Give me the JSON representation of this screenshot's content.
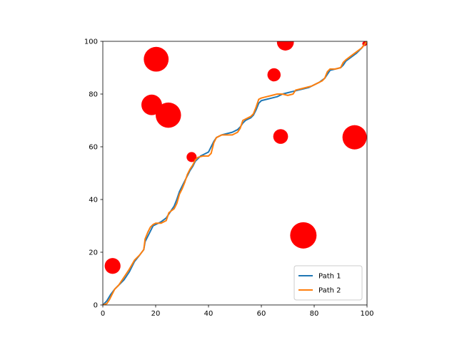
{
  "chart_data": {
    "type": "line",
    "xlim": [
      0,
      100
    ],
    "ylim": [
      0,
      100
    ],
    "xticks": [
      0,
      20,
      40,
      60,
      80,
      100
    ],
    "yticks": [
      0,
      20,
      40,
      60,
      80,
      100
    ],
    "grid": false,
    "legend_position": "lower-right",
    "obstacles": {
      "color": "#ff0000",
      "circles": [
        {
          "x": 3.7,
          "y": 14.8,
          "r": 3.0
        },
        {
          "x": 20.2,
          "y": 93.2,
          "r": 4.7
        },
        {
          "x": 18.5,
          "y": 75.9,
          "r": 3.9
        },
        {
          "x": 24.8,
          "y": 72.0,
          "r": 4.8
        },
        {
          "x": 33.6,
          "y": 56.1,
          "r": 1.9
        },
        {
          "x": 64.8,
          "y": 87.3,
          "r": 2.5
        },
        {
          "x": 69.1,
          "y": 99.7,
          "r": 3.2
        },
        {
          "x": 67.3,
          "y": 63.9,
          "r": 2.8
        },
        {
          "x": 75.9,
          "y": 26.4,
          "r": 5.0
        },
        {
          "x": 95.3,
          "y": 63.6,
          "r": 4.6
        },
        {
          "x": 99.1,
          "y": 99.1,
          "r": 0.9
        }
      ]
    },
    "series": [
      {
        "name": "Path 1",
        "color": "#1f77b4",
        "points": [
          [
            0,
            0
          ],
          [
            1.5,
            1.5
          ],
          [
            3,
            4
          ],
          [
            4.5,
            6
          ],
          [
            6,
            7.5
          ],
          [
            8,
            9.5
          ],
          [
            10,
            12.5
          ],
          [
            12,
            16.5
          ],
          [
            14,
            19
          ],
          [
            15.5,
            21
          ],
          [
            16,
            24
          ],
          [
            17,
            26
          ],
          [
            18,
            28
          ],
          [
            19,
            30
          ],
          [
            20,
            30.5
          ],
          [
            22,
            31.5
          ],
          [
            24,
            33
          ],
          [
            25,
            34.5
          ],
          [
            26,
            36
          ],
          [
            27,
            37.5
          ],
          [
            28,
            40
          ],
          [
            29,
            43
          ],
          [
            30,
            45
          ],
          [
            31,
            47
          ],
          [
            32,
            49
          ],
          [
            33,
            51
          ],
          [
            34,
            52.5
          ],
          [
            35,
            54.5
          ],
          [
            36,
            55.5
          ],
          [
            37,
            56.5
          ],
          [
            38,
            57
          ],
          [
            40,
            58
          ],
          [
            41,
            60
          ],
          [
            42,
            62
          ],
          [
            43,
            63.5
          ],
          [
            45,
            64.5
          ],
          [
            47,
            65
          ],
          [
            49,
            65.5
          ],
          [
            51,
            66.5
          ],
          [
            52,
            67.5
          ],
          [
            53,
            69
          ],
          [
            54,
            70
          ],
          [
            55,
            70.5
          ],
          [
            56,
            71
          ],
          [
            57,
            72
          ],
          [
            58,
            74
          ],
          [
            59,
            76.5
          ],
          [
            60,
            77.5
          ],
          [
            62,
            78
          ],
          [
            64,
            78.5
          ],
          [
            66,
            79
          ],
          [
            68,
            80
          ],
          [
            70,
            80.5
          ],
          [
            72,
            81
          ],
          [
            74,
            81.5
          ],
          [
            76,
            82
          ],
          [
            78,
            82.5
          ],
          [
            80,
            83.5
          ],
          [
            82,
            84.5
          ],
          [
            84,
            86
          ],
          [
            85,
            87.5
          ],
          [
            86,
            89
          ],
          [
            88,
            89.5
          ],
          [
            90,
            90
          ],
          [
            91,
            91
          ],
          [
            92,
            92.5
          ],
          [
            94,
            94
          ],
          [
            96,
            95.5
          ],
          [
            98,
            97.5
          ],
          [
            100,
            100
          ]
        ]
      },
      {
        "name": "Path 2",
        "color": "#ff7f0e",
        "points": [
          [
            0,
            0
          ],
          [
            1.5,
            0.5
          ],
          [
            2.5,
            2
          ],
          [
            3.5,
            4
          ],
          [
            4.5,
            6
          ],
          [
            6,
            7.5
          ],
          [
            8,
            10.5
          ],
          [
            10,
            13.5
          ],
          [
            12,
            17
          ],
          [
            14,
            19
          ],
          [
            15.5,
            21
          ],
          [
            16,
            25
          ],
          [
            17,
            27.5
          ],
          [
            18,
            29.5
          ],
          [
            19,
            30.5
          ],
          [
            20,
            31
          ],
          [
            22,
            31
          ],
          [
            24,
            32
          ],
          [
            25,
            35
          ],
          [
            27,
            36.5
          ],
          [
            28,
            38.5
          ],
          [
            29,
            42
          ],
          [
            30,
            44
          ],
          [
            31,
            46.5
          ],
          [
            32,
            49.5
          ],
          [
            33,
            51.5
          ],
          [
            34,
            53
          ],
          [
            35,
            55
          ],
          [
            36,
            56
          ],
          [
            38,
            56.5
          ],
          [
            40,
            56.5
          ],
          [
            41,
            57.5
          ],
          [
            42,
            61.5
          ],
          [
            43,
            63.5
          ],
          [
            45,
            64.5
          ],
          [
            47,
            64.5
          ],
          [
            49,
            64.5
          ],
          [
            51,
            65.5
          ],
          [
            52,
            67
          ],
          [
            53,
            70
          ],
          [
            54,
            70.5
          ],
          [
            55,
            71
          ],
          [
            56,
            71.5
          ],
          [
            57,
            72.5
          ],
          [
            58,
            75
          ],
          [
            59,
            78
          ],
          [
            60,
            78.5
          ],
          [
            62,
            79
          ],
          [
            64,
            79.5
          ],
          [
            66,
            80
          ],
          [
            68,
            80
          ],
          [
            70,
            79.5
          ],
          [
            72,
            80
          ],
          [
            73,
            81.5
          ],
          [
            75,
            82
          ],
          [
            77,
            82.5
          ],
          [
            79,
            83
          ],
          [
            81,
            84
          ],
          [
            83,
            85
          ],
          [
            84,
            86
          ],
          [
            85,
            88.5
          ],
          [
            86,
            89.5
          ],
          [
            88,
            89.5
          ],
          [
            90,
            90
          ],
          [
            91,
            92
          ],
          [
            92,
            93
          ],
          [
            94,
            94.5
          ],
          [
            96,
            96
          ],
          [
            98,
            97.5
          ],
          [
            100,
            100
          ]
        ]
      }
    ]
  }
}
